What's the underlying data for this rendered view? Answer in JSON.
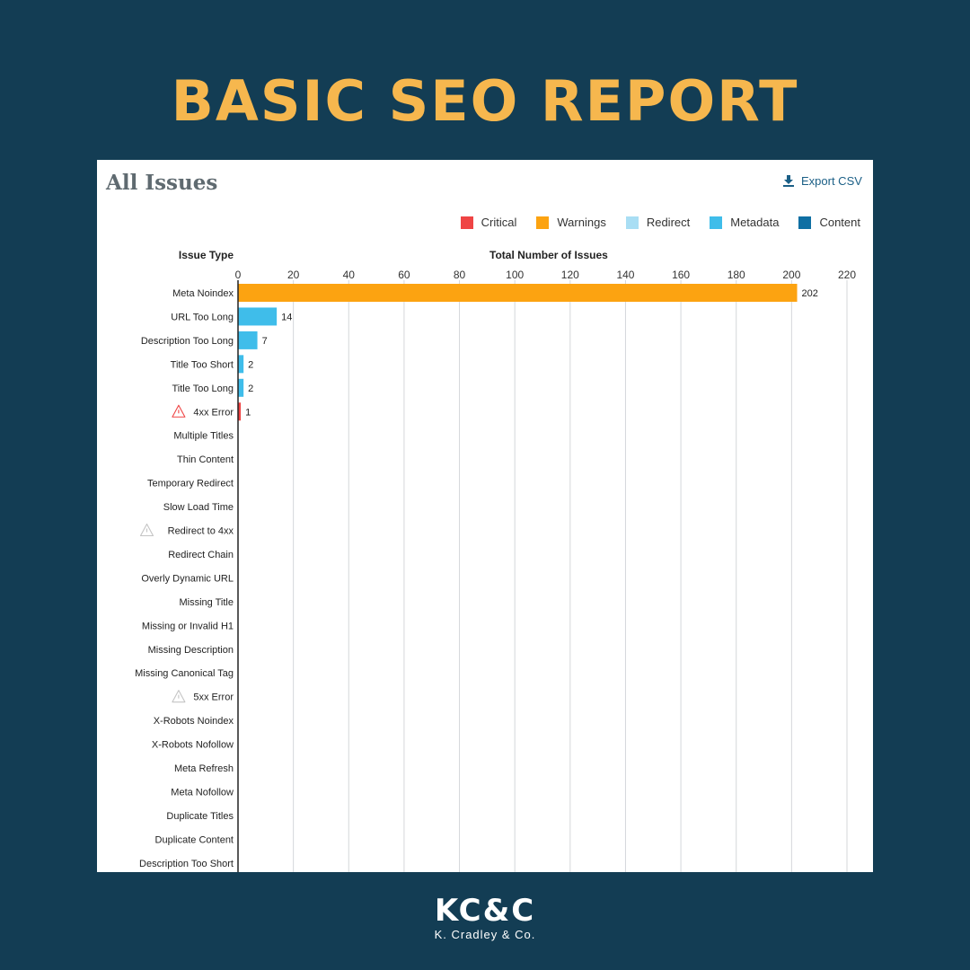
{
  "header": {
    "title": "BASIC SEO REPORT"
  },
  "panel": {
    "title": "All Issues",
    "export_label": "Export CSV",
    "export_icon": "download-icon"
  },
  "colors": {
    "background": "#133d54",
    "headline": "#f6b74e",
    "critical": "#ef4444",
    "warnings": "#fca311",
    "redirect": "#a9def4",
    "metadata": "#3fbdea",
    "content": "#0f6fa3"
  },
  "chart_data": {
    "type": "bar",
    "orientation": "horizontal",
    "title": "",
    "xlabel": "Total Number of Issues",
    "ylabel": "Issue Type",
    "xlim": [
      0,
      220
    ],
    "xticks": [
      0,
      20,
      40,
      60,
      80,
      100,
      120,
      140,
      160,
      180,
      200,
      220
    ],
    "grid": true,
    "legend_position": "top-right",
    "legend": [
      {
        "name": "Critical",
        "color": "#ef4444"
      },
      {
        "name": "Warnings",
        "color": "#fca311"
      },
      {
        "name": "Redirect",
        "color": "#a9def4"
      },
      {
        "name": "Metadata",
        "color": "#3fbdea"
      },
      {
        "name": "Content",
        "color": "#0f6fa3"
      }
    ],
    "categories": [
      {
        "label": "Meta Noindex",
        "value": 202,
        "group": "Warnings"
      },
      {
        "label": "URL Too Long",
        "value": 14,
        "group": "Metadata"
      },
      {
        "label": "Description Too Long",
        "value": 7,
        "group": "Metadata"
      },
      {
        "label": "Title Too Short",
        "value": 2,
        "group": "Metadata"
      },
      {
        "label": "Title Too Long",
        "value": 2,
        "group": "Metadata"
      },
      {
        "label": "4xx Error",
        "value": 1,
        "group": "Critical",
        "icon": "warning-icon",
        "icon_color": "#ef4444"
      },
      {
        "label": "Multiple Titles",
        "value": null
      },
      {
        "label": "Thin Content",
        "value": null
      },
      {
        "label": "Temporary Redirect",
        "value": null
      },
      {
        "label": "Slow Load Time",
        "value": null
      },
      {
        "label": "Redirect to 4xx",
        "value": null,
        "icon": "warning-icon",
        "icon_color": "#c4c4c4"
      },
      {
        "label": "Redirect Chain",
        "value": null
      },
      {
        "label": "Overly Dynamic URL",
        "value": null
      },
      {
        "label": "Missing Title",
        "value": null
      },
      {
        "label": "Missing or Invalid H1",
        "value": null
      },
      {
        "label": "Missing Description",
        "value": null
      },
      {
        "label": "Missing Canonical Tag",
        "value": null
      },
      {
        "label": "5xx Error",
        "value": null,
        "icon": "warning-icon",
        "icon_color": "#c4c4c4"
      },
      {
        "label": "X-Robots Noindex",
        "value": null
      },
      {
        "label": "X-Robots Nofollow",
        "value": null
      },
      {
        "label": "Meta Refresh",
        "value": null
      },
      {
        "label": "Meta Nofollow",
        "value": null
      },
      {
        "label": "Duplicate Titles",
        "value": null
      },
      {
        "label": "Duplicate Content",
        "value": null
      },
      {
        "label": "Description Too Short",
        "value": null
      }
    ]
  },
  "footer": {
    "logo_mark": "KC&C",
    "logo_sub": "K. Cradley & Co."
  }
}
